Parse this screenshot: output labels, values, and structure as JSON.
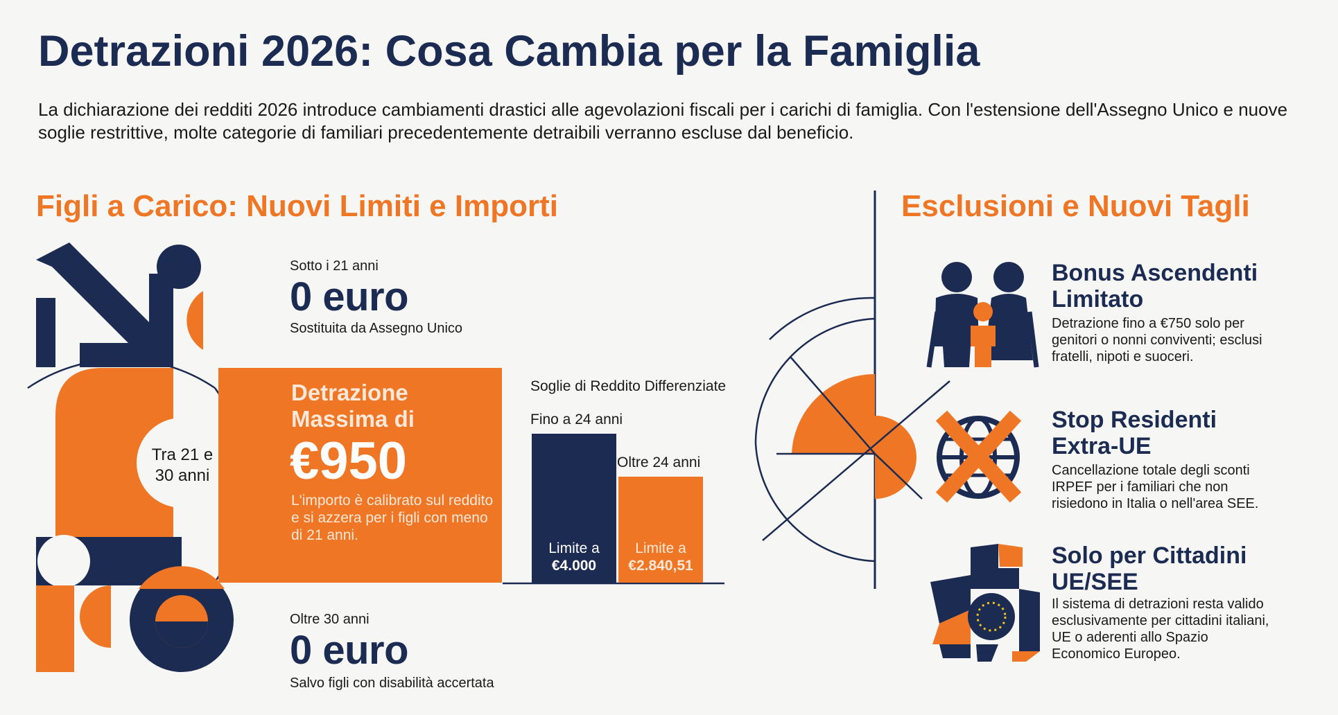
{
  "header": {
    "title": "Detrazioni 2026: Cosa Cambia per la Famiglia",
    "intro": "La dichiarazione dei redditi 2026 introduce cambiamenti drastici alle agevolazioni fiscali per i carichi di famiglia. Con l'estensione dell'Assegno Unico e nuove soglie restrittive, molte categorie di familiari precedentemente detraibili verranno escluse dal beneficio."
  },
  "left_section": {
    "title": "Figli a Carico: Nuovi Limiti e Importi",
    "under21": {
      "label": "Sotto i 21 anni",
      "amount": "0 euro",
      "note": "Sostituita da Assegno Unico"
    },
    "age_range": "Tra 21 e 30 anni",
    "max_deduction": {
      "title": "Detrazione Massima di",
      "amount": "€950",
      "desc": "L'importo è calibrato sul reddito e si azzera per i figli con meno di 21 anni."
    },
    "over30": {
      "label": "Oltre 30 anni",
      "amount": "0 euro",
      "note": "Salvo figli con disabilità accertata"
    }
  },
  "thresholds": {
    "title": "Soglie di Reddito Differenziate",
    "bars": [
      {
        "label": "Fino a 24 anni",
        "inner_line1": "Limite a",
        "inner_line2": "€4.000",
        "value": 4000,
        "color": "#1c2b52"
      },
      {
        "label": "Oltre 24 anni",
        "inner_line1": "Limite a",
        "inner_line2": "€2.840,51",
        "value": 2840.51,
        "color": "#ef7624"
      }
    ]
  },
  "right_section": {
    "title": "Esclusioni e Nuovi Tagli",
    "items": [
      {
        "title": "Bonus Ascendenti Limitato",
        "desc": "Detrazione fino a €750 solo per genitori o nonni conviventi; esclusi fratelli, nipoti e suoceri.",
        "icon": "family-icon"
      },
      {
        "title": "Stop Residenti Extra-UE",
        "desc": "Cancellazione totale degli sconti IRPEF per i familiari che non risiedono in Italia o nell'area SEE.",
        "icon": "globe-cross-icon"
      },
      {
        "title": "Solo per Cittadini UE/SEE",
        "desc": "Il sistema di detrazioni resta valido esclusivamente per cittadini italiani, UE o aderenti allo Spazio Economico Europeo.",
        "icon": "eu-map-icon"
      }
    ]
  },
  "colors": {
    "navy": "#1c2b52",
    "orange": "#ef7624",
    "background": "#f6f6f4"
  }
}
